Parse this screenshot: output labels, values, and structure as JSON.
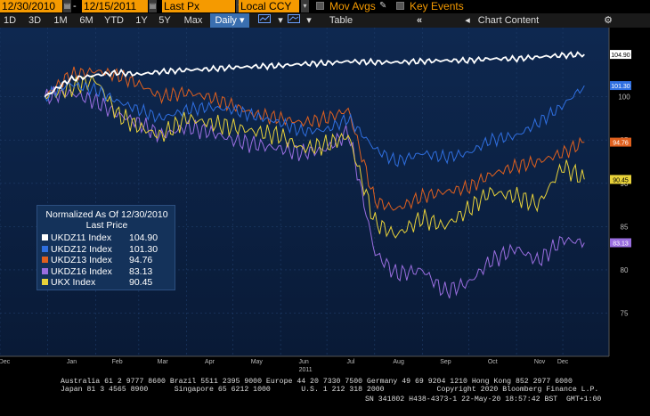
{
  "toolbar": {
    "start_date": "12/30/2010",
    "end_date": "12/15/2011",
    "field": "Last Px",
    "currency": "Local CCY",
    "mov_avgs": "Mov Avgs",
    "key_events": "Key Events"
  },
  "tabs": {
    "periods": [
      "1D",
      "3D",
      "1M",
      "6M",
      "YTD",
      "1Y",
      "5Y",
      "Max"
    ],
    "frequency": "Daily",
    "table": "Table",
    "chart_content": "Chart Content"
  },
  "legend": {
    "title": "Normalized As Of 12/30/2010",
    "subtitle": "Last Price",
    "rows": [
      {
        "label": "UKDZ11 Index",
        "value": "104.90",
        "color": "#ffffff"
      },
      {
        "label": "UKDZ12 Index",
        "value": "101.30",
        "color": "#2f6fe0"
      },
      {
        "label": "UKDZ13 Index",
        "value": "94.76",
        "color": "#e0601e"
      },
      {
        "label": "UKDZ16 Index",
        "value": "83.13",
        "color": "#9a6ee0"
      },
      {
        "label": "UKX Index",
        "value": "90.45",
        "color": "#e8d23a"
      }
    ]
  },
  "footer": {
    "line1": "Australia 61 2 9777 8600 Brazil 5511 2395 9000 Europe 44 20 7330 7500 Germany 49 69 9204 1210 Hong Kong 852 2977 6000",
    "line2": "Japan 81 3 4565 8900      Singapore 65 6212 1000       U.S. 1 212 318 2000            Copyright 2020 Bloomberg Finance L.P.",
    "line3": "SN 341802 H438-4373-1 22-May-20 18:57:42 BST  GMT+1:00"
  },
  "chart_data": {
    "type": "line",
    "x_labels": [
      "Dec",
      "Jan",
      "Feb",
      "Mar",
      "Apr",
      "May",
      "Jun",
      "Jul",
      "Aug",
      "Sep",
      "Oct",
      "Nov",
      "Dec"
    ],
    "x_year_label": "2011",
    "y_ticks": [
      75,
      80,
      85,
      90,
      95,
      100
    ],
    "ylim": [
      70,
      108
    ],
    "x": [
      "2010-12-30",
      "2011-01-15",
      "2011-02-01",
      "2011-02-15",
      "2011-03-01",
      "2011-03-15",
      "2011-04-01",
      "2011-04-15",
      "2011-05-01",
      "2011-05-15",
      "2011-06-01",
      "2011-06-15",
      "2011-07-01",
      "2011-07-15",
      "2011-08-01",
      "2011-08-15",
      "2011-09-01",
      "2011-09-15",
      "2011-10-01",
      "2011-10-15",
      "2011-11-01",
      "2011-11-15",
      "2011-12-01",
      "2011-12-15"
    ],
    "series": [
      {
        "name": "UKDZ11 Index",
        "color": "#ffffff",
        "label": "104.90",
        "values": [
          100.0,
          102.0,
          102.5,
          102.8,
          102.6,
          102.9,
          103.1,
          103.2,
          103.4,
          103.5,
          103.6,
          103.8,
          103.9,
          104.1,
          104.0,
          104.0,
          104.1,
          104.2,
          104.2,
          104.4,
          104.4,
          104.6,
          104.8,
          104.9
        ]
      },
      {
        "name": "UKDZ12 Index",
        "color": "#2f6fe0",
        "label": "101.30",
        "values": [
          100.0,
          101.5,
          100.8,
          99.5,
          98.5,
          97.5,
          98.5,
          98.8,
          98.5,
          97.8,
          97.0,
          96.0,
          96.2,
          97.5,
          94.0,
          92.5,
          93.5,
          93.0,
          93.5,
          95.0,
          95.5,
          97.0,
          99.0,
          101.3
        ]
      },
      {
        "name": "UKDZ13 Index",
        "color": "#e0601e",
        "label": "94.76",
        "values": [
          100.0,
          102.5,
          103.0,
          102.5,
          101.5,
          100.0,
          100.5,
          100.0,
          99.0,
          98.0,
          97.5,
          97.0,
          97.5,
          98.5,
          88.0,
          87.0,
          88.5,
          89.0,
          89.5,
          91.0,
          92.0,
          92.5,
          93.5,
          94.76
        ]
      },
      {
        "name": "UKDZ16 Index",
        "color": "#9a6ee0",
        "label": "83.13",
        "values": [
          100.0,
          100.5,
          99.5,
          98.0,
          97.0,
          95.5,
          96.5,
          96.0,
          95.0,
          94.5,
          94.0,
          93.5,
          94.0,
          96.0,
          82.0,
          79.5,
          80.0,
          77.5,
          78.5,
          81.0,
          82.5,
          81.0,
          83.5,
          83.13
        ]
      },
      {
        "name": "UKX Index",
        "color": "#e8d23a",
        "label": "90.45",
        "values": [
          100.0,
          101.0,
          102.0,
          98.0,
          96.5,
          95.5,
          97.5,
          97.0,
          96.5,
          96.0,
          95.5,
          94.0,
          94.5,
          95.5,
          85.5,
          84.0,
          86.0,
          85.0,
          87.0,
          89.0,
          88.5,
          87.5,
          92.0,
          90.45
        ]
      }
    ]
  }
}
